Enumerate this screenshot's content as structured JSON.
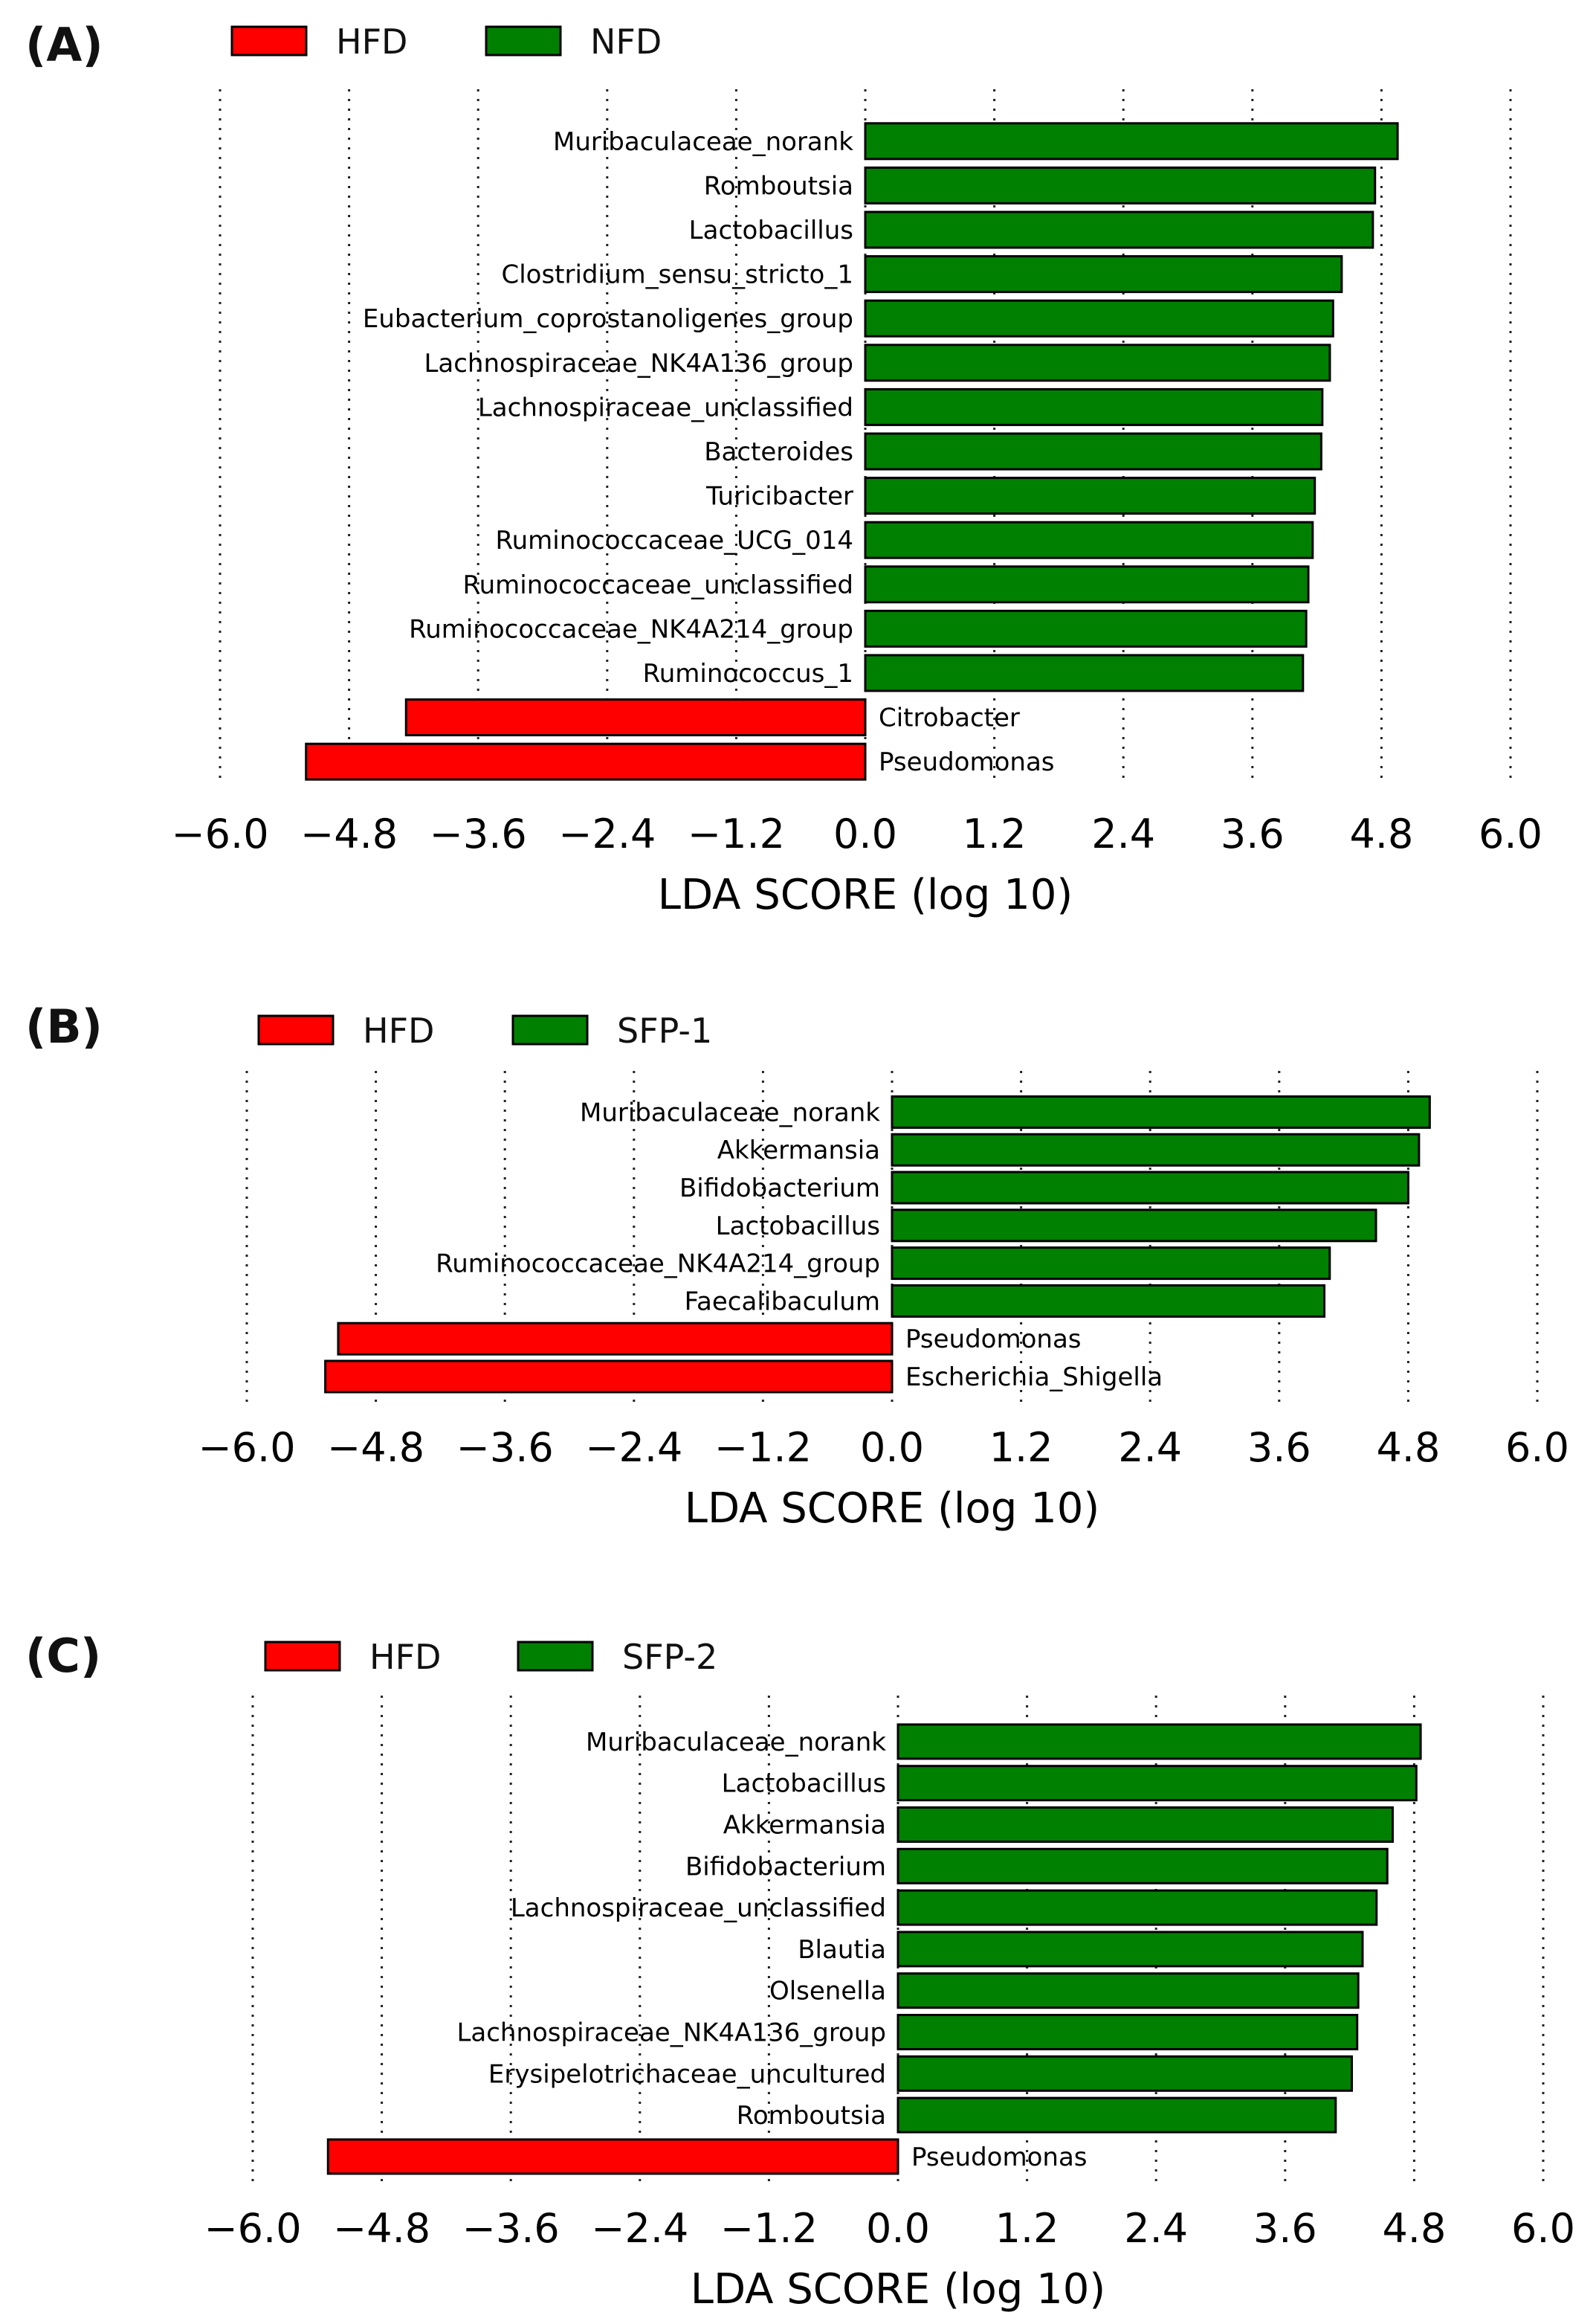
{
  "chart_data": [
    {
      "type": "bar",
      "orientation": "horizontal",
      "panel_label": "(A)",
      "legend": [
        {
          "name": "HFD",
          "color": "#ff0000"
        },
        {
          "name": "NFD",
          "color": "#008000"
        }
      ],
      "xlabel": "LDA SCORE (log 10)",
      "xlim": [
        -6.0,
        6.0
      ],
      "xticks": [
        -6.0,
        -4.8,
        -3.6,
        -2.4,
        -1.2,
        0.0,
        1.2,
        2.4,
        3.6,
        4.8,
        6.0
      ],
      "tick_labels": [
        "−6.0",
        "−4.8",
        "−3.6",
        "−2.4",
        "−1.2",
        "0.0",
        "1.2",
        "2.4",
        "3.6",
        "4.8",
        "6.0"
      ],
      "grid": true,
      "bars": [
        {
          "label": "Muribaculaceae_norank",
          "value": 4.95,
          "group": "NFD"
        },
        {
          "label": "Romboutsia",
          "value": 4.74,
          "group": "NFD"
        },
        {
          "label": "Lactobacillus",
          "value": 4.72,
          "group": "NFD"
        },
        {
          "label": "Clostridium_sensu_stricto_1",
          "value": 4.43,
          "group": "NFD"
        },
        {
          "label": "Eubacterium_coprostanoligenes_group",
          "value": 4.35,
          "group": "NFD"
        },
        {
          "label": "Lachnospiraceae_NK4A136_group",
          "value": 4.32,
          "group": "NFD"
        },
        {
          "label": "Lachnospiraceae_unclassified",
          "value": 4.25,
          "group": "NFD"
        },
        {
          "label": "Bacteroides",
          "value": 4.24,
          "group": "NFD"
        },
        {
          "label": "Turicibacter",
          "value": 4.18,
          "group": "NFD"
        },
        {
          "label": "Ruminococcaceae_UCG_014",
          "value": 4.16,
          "group": "NFD"
        },
        {
          "label": "Ruminococcaceae_unclassified",
          "value": 4.12,
          "group": "NFD"
        },
        {
          "label": "Ruminococcaceae_NK4A214_group",
          "value": 4.1,
          "group": "NFD"
        },
        {
          "label": "Ruminococcus_1",
          "value": 4.07,
          "group": "NFD"
        },
        {
          "label": "Citrobacter",
          "value": -4.27,
          "group": "HFD"
        },
        {
          "label": "Pseudomonas",
          "value": -5.2,
          "group": "HFD"
        }
      ]
    },
    {
      "type": "bar",
      "orientation": "horizontal",
      "panel_label": "(B)",
      "legend": [
        {
          "name": "HFD",
          "color": "#ff0000"
        },
        {
          "name": "SFP-1",
          "color": "#008000"
        }
      ],
      "xlabel": "LDA SCORE (log 10)",
      "xlim": [
        -6.0,
        6.0
      ],
      "xticks": [
        -6.0,
        -4.8,
        -3.6,
        -2.4,
        -1.2,
        0.0,
        1.2,
        2.4,
        3.6,
        4.8,
        6.0
      ],
      "tick_labels": [
        "−6.0",
        "−4.8",
        "−3.6",
        "−2.4",
        "−1.2",
        "0.0",
        "1.2",
        "2.4",
        "3.6",
        "4.8",
        "6.0"
      ],
      "grid": true,
      "bars": [
        {
          "label": "Muribaculaceae_norank",
          "value": 5.0,
          "group": "SFP-1"
        },
        {
          "label": "Akkermansia",
          "value": 4.9,
          "group": "SFP-1"
        },
        {
          "label": "Bifidobacterium",
          "value": 4.8,
          "group": "SFP-1"
        },
        {
          "label": "Lactobacillus",
          "value": 4.5,
          "group": "SFP-1"
        },
        {
          "label": "Ruminococcaceae_NK4A214_group",
          "value": 4.07,
          "group": "SFP-1"
        },
        {
          "label": "Faecalibaculum",
          "value": 4.02,
          "group": "SFP-1"
        },
        {
          "label": "Pseudomonas",
          "value": -5.15,
          "group": "HFD"
        },
        {
          "label": "Escherichia_Shigella",
          "value": -5.27,
          "group": "HFD"
        }
      ]
    },
    {
      "type": "bar",
      "orientation": "horizontal",
      "panel_label": "(C)",
      "legend": [
        {
          "name": "HFD",
          "color": "#ff0000"
        },
        {
          "name": "SFP-2",
          "color": "#008000"
        }
      ],
      "xlabel": "LDA SCORE (log 10)",
      "xlim": [
        -6.0,
        6.0
      ],
      "xticks": [
        -6.0,
        -4.8,
        -3.6,
        -2.4,
        -1.2,
        0.0,
        1.2,
        2.4,
        3.6,
        4.8,
        6.0
      ],
      "tick_labels": [
        "−6.0",
        "−4.8",
        "−3.6",
        "−2.4",
        "−1.2",
        "0.0",
        "1.2",
        "2.4",
        "3.6",
        "4.8",
        "6.0"
      ],
      "grid": true,
      "bars": [
        {
          "label": "Muribaculaceae_norank",
          "value": 4.86,
          "group": "SFP-2"
        },
        {
          "label": "Lactobacillus",
          "value": 4.82,
          "group": "SFP-2"
        },
        {
          "label": "Akkermansia",
          "value": 4.6,
          "group": "SFP-2"
        },
        {
          "label": "Bifidobacterium",
          "value": 4.55,
          "group": "SFP-2"
        },
        {
          "label": "Lachnospiraceae_unclassified",
          "value": 4.45,
          "group": "SFP-2"
        },
        {
          "label": "Blautia",
          "value": 4.32,
          "group": "SFP-2"
        },
        {
          "label": "Olsenella",
          "value": 4.28,
          "group": "SFP-2"
        },
        {
          "label": "Lachnospiraceae_NK4A136_group",
          "value": 4.27,
          "group": "SFP-2"
        },
        {
          "label": "Erysipelotrichaceae_uncultured",
          "value": 4.22,
          "group": "SFP-2"
        },
        {
          "label": "Romboutsia",
          "value": 4.07,
          "group": "SFP-2"
        },
        {
          "label": "Pseudomonas",
          "value": -5.3,
          "group": "HFD"
        }
      ]
    }
  ]
}
